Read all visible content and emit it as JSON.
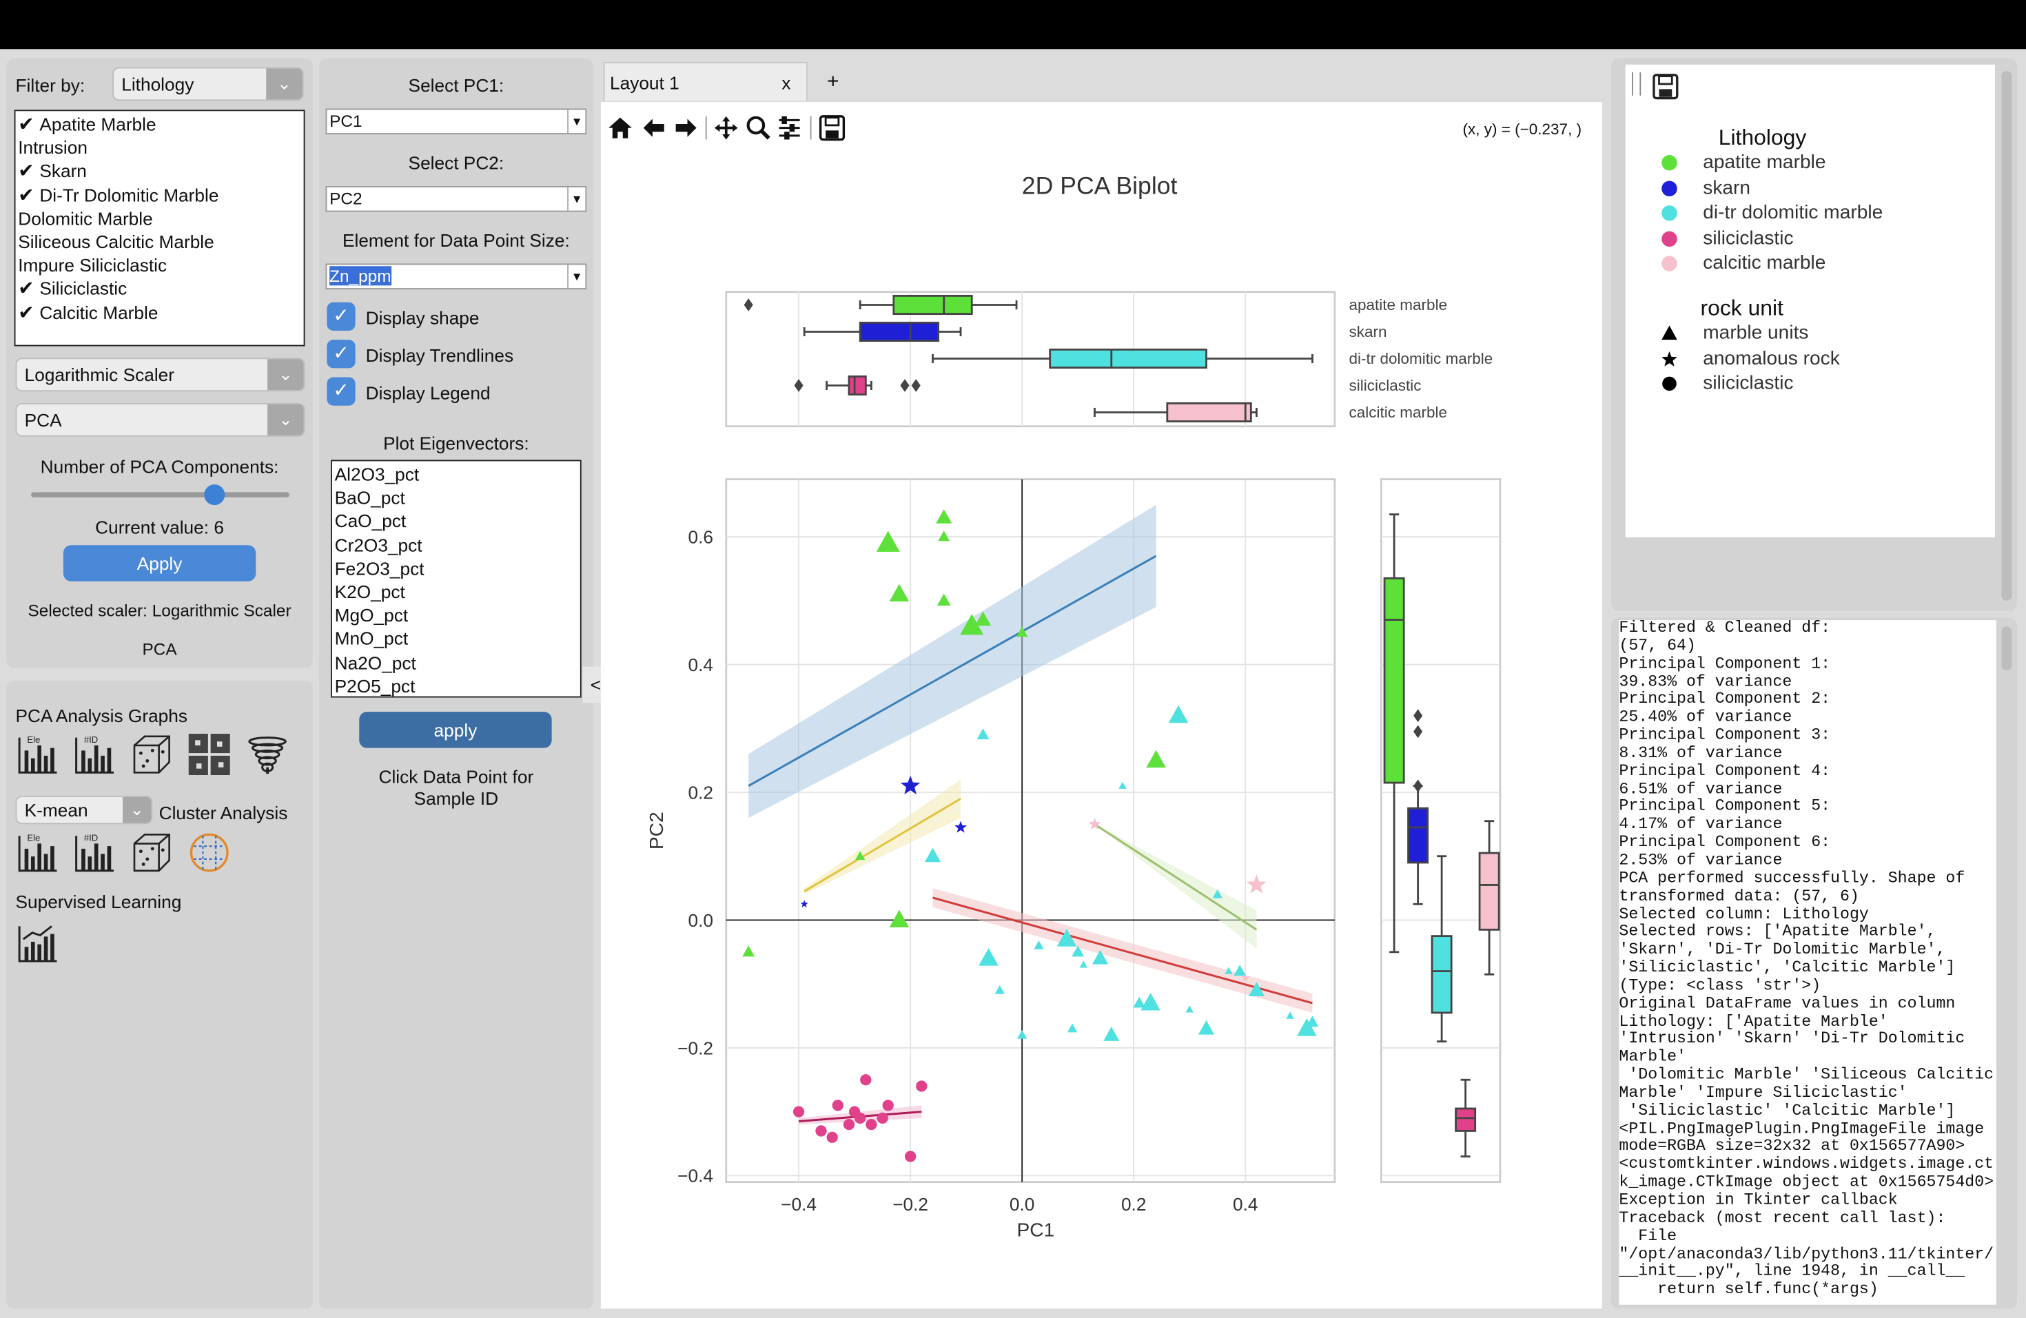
{
  "left_panel": {
    "filter_label": "Filter by:",
    "filter_value": "Lithology",
    "filter_items": [
      {
        "label": "Apatite Marble",
        "checked": true
      },
      {
        "label": "Intrusion",
        "checked": false
      },
      {
        "label": "Skarn",
        "checked": true
      },
      {
        "label": "Di-Tr Dolomitic Marble",
        "checked": true
      },
      {
        "label": "Dolomitic Marble",
        "checked": false
      },
      {
        "label": "Siliceous Calcitic Marble",
        "checked": false
      },
      {
        "label": "Impure Siliciclastic",
        "checked": false
      },
      {
        "label": "Siliciclastic",
        "checked": true
      },
      {
        "label": "Calcitic Marble",
        "checked": true
      }
    ],
    "scaler_value": "Logarithmic Scaler",
    "method_value": "PCA",
    "components_label": "Number of PCA Components:",
    "slider_fraction": 0.71,
    "current_value_text": "Current value: 6",
    "apply_label": "Apply",
    "selected_scaler_text": "Selected scaler: Logarithmic Scaler",
    "method_text": "PCA",
    "pca_graphs_label": "PCA Analysis Graphs",
    "cluster_method": "K-mean",
    "cluster_label": "Cluster Analysis",
    "supervised_label": "Supervised Learning",
    "icon_text_ele": "Ele",
    "icon_text_id": "#ID"
  },
  "mid_panel": {
    "pc1_label": "Select PC1:",
    "pc1_value": "PC1",
    "pc2_label": "Select PC2:",
    "pc2_value": "PC2",
    "size_label": "Element for Data Point Size:",
    "size_value": "Zn_ppm",
    "checkboxes": [
      {
        "label": "Display shape",
        "checked": true
      },
      {
        "label": "Display Trendlines",
        "checked": true
      },
      {
        "label": "Display Legend",
        "checked": true
      }
    ],
    "eigen_label": "Plot Eigenvectors:",
    "eigen_items": [
      "Al2O3_pct",
      "BaO_pct",
      "CaO_pct",
      "Cr2O3_pct",
      "Fe2O3_pct",
      "K2O_pct",
      "MgO_pct",
      "MnO_pct",
      "Na2O_pct",
      "P2O5_pct"
    ],
    "apply_label": "apply",
    "click_hint_1": "Click Data Point for",
    "click_hint_2": "Sample ID",
    "collapse_glyph": "<"
  },
  "tabs": {
    "tab1": "Layout 1",
    "close": "x",
    "add": "+"
  },
  "toolbar": {
    "coord_readout": "(x, y) = (−0.237, )"
  },
  "legend_panel": {
    "lithology_title": "Lithology",
    "lithology_items": [
      {
        "label": "apatite marble",
        "color": "#5ee03a"
      },
      {
        "label": "skarn",
        "color": "#1f1fd6"
      },
      {
        "label": "di-tr dolomitic marble",
        "color": "#4fe0e0"
      },
      {
        "label": "siliciclastic",
        "color": "#e0418a"
      },
      {
        "label": "calcitic marble",
        "color": "#f6c0cc"
      }
    ],
    "rock_title": "rock unit",
    "rock_items": [
      {
        "label": "marble units",
        "marker": "triangle"
      },
      {
        "label": "anomalous rock",
        "marker": "star"
      },
      {
        "label": "siliciclastic",
        "marker": "circle"
      }
    ]
  },
  "console_lines": [
    "Filtered & Cleaned df:",
    "(57, 64)",
    "Principal Component 1:",
    "39.83% of variance",
    "Principal Component 2:",
    "25.40% of variance",
    "Principal Component 3:",
    "8.31% of variance",
    "Principal Component 4:",
    "6.51% of variance",
    "Principal Component 5:",
    "4.17% of variance",
    "Principal Component 6:",
    "2.53% of variance",
    "PCA performed successfully. Shape of",
    "transformed data: (57, 6)",
    "Selected column: Lithology",
    "Selected rows: ['Apatite Marble',",
    "'Skarn', 'Di-Tr Dolomitic Marble',",
    "'Siliciclastic', 'Calcitic Marble']",
    "(Type: <class 'str'>)",
    "Original DataFrame values in column",
    "Lithology: ['Apatite Marble'",
    "'Intrusion' 'Skarn' 'Di-Tr Dolomitic",
    "Marble'",
    " 'Dolomitic Marble' 'Siliceous Calcitic",
    "Marble' 'Impure Siliciclastic'",
    " 'Siliciclastic' 'Calcitic Marble']",
    "<PIL.PngImagePlugin.PngImageFile image",
    "mode=RGBA size=32x32 at 0x156577A90>",
    "<customtkinter.windows.widgets.image.ct",
    "k_image.CTkImage object at 0x1565754d0>",
    "Exception in Tkinter callback",
    "Traceback (most recent call last):",
    "  File",
    "\"/opt/anaconda3/lib/python3.11/tkinter/",
    "__init__.py\", line 1948, in __call__",
    "    return self.func(*args)"
  ],
  "chart_data": {
    "type": "scatter",
    "title": "2D PCA Biplot",
    "xlabel": "PC1",
    "ylabel": "PC2",
    "xlim": [
      -0.53,
      0.56
    ],
    "ylim": [
      -0.41,
      0.69
    ],
    "x_ticks": [
      -0.4,
      -0.2,
      0.0,
      0.2,
      0.4
    ],
    "y_ticks": [
      -0.4,
      -0.2,
      0.0,
      0.2,
      0.4,
      0.6
    ],
    "x_tick_labels": [
      "−0.4",
      "−0.2",
      "0.0",
      "0.2",
      "0.4"
    ],
    "y_tick_labels": [
      "−0.4",
      "−0.2",
      "0.0",
      "0.2",
      "0.4",
      "0.6"
    ],
    "grid": true,
    "series": [
      {
        "name": "apatite marble",
        "color": "#5ee03a",
        "marker": "triangle",
        "points": [
          [
            -0.24,
            0.59
          ],
          [
            -0.14,
            0.63
          ],
          [
            -0.14,
            0.6
          ],
          [
            -0.22,
            0.51
          ],
          [
            -0.14,
            0.5
          ],
          [
            -0.09,
            0.46
          ],
          [
            -0.07,
            0.47
          ],
          [
            0.0,
            0.45
          ],
          [
            0.24,
            0.25
          ],
          [
            -0.29,
            0.1
          ],
          [
            -0.22,
            0.0
          ],
          [
            -0.49,
            -0.05
          ]
        ]
      },
      {
        "name": "skarn",
        "color": "#1f1fd6",
        "marker": "star",
        "points": [
          [
            -0.2,
            0.21
          ],
          [
            -0.11,
            0.145
          ],
          [
            -0.39,
            0.025
          ]
        ]
      },
      {
        "name": "di-tr dolomitic marble",
        "color": "#4fe0e0",
        "marker": "triangle",
        "points": [
          [
            0.28,
            0.32
          ],
          [
            -0.07,
            0.29
          ],
          [
            0.18,
            0.21
          ],
          [
            -0.16,
            0.1
          ],
          [
            0.35,
            0.04
          ],
          [
            0.08,
            -0.03
          ],
          [
            0.1,
            -0.05
          ],
          [
            0.11,
            -0.07
          ],
          [
            0.14,
            -0.06
          ],
          [
            0.03,
            -0.04
          ],
          [
            -0.06,
            -0.06
          ],
          [
            0.39,
            -0.08
          ],
          [
            0.37,
            -0.08
          ],
          [
            0.42,
            -0.11
          ],
          [
            -0.04,
            -0.11
          ],
          [
            0.23,
            -0.13
          ],
          [
            0.21,
            -0.13
          ],
          [
            0.3,
            -0.14
          ],
          [
            0.33,
            -0.17
          ],
          [
            0.09,
            -0.17
          ],
          [
            0.51,
            -0.17
          ],
          [
            0.52,
            -0.16
          ],
          [
            0.48,
            -0.15
          ],
          [
            0.16,
            -0.18
          ],
          [
            0.0,
            -0.18
          ]
        ]
      },
      {
        "name": "siliciclastic",
        "color": "#e0418a",
        "marker": "circle",
        "points": [
          [
            -0.28,
            -0.25
          ],
          [
            -0.18,
            -0.26
          ],
          [
            -0.4,
            -0.3
          ],
          [
            -0.33,
            -0.29
          ],
          [
            -0.3,
            -0.3
          ],
          [
            -0.29,
            -0.31
          ],
          [
            -0.27,
            -0.32
          ],
          [
            -0.24,
            -0.29
          ],
          [
            -0.25,
            -0.31
          ],
          [
            -0.31,
            -0.32
          ],
          [
            -0.36,
            -0.33
          ],
          [
            -0.34,
            -0.34
          ],
          [
            -0.2,
            -0.37
          ]
        ]
      },
      {
        "name": "calcitic marble",
        "color": "#f6c0cc",
        "marker": "star",
        "points": [
          [
            0.42,
            0.055
          ],
          [
            0.13,
            0.15
          ],
          [
            0.4,
            -0.09
          ]
        ]
      }
    ],
    "trendlines": [
      {
        "series": "apatite marble",
        "color": "#3a7fb8",
        "band": "#a9c6e0",
        "x": [
          -0.49,
          0.24
        ],
        "y": [
          0.21,
          0.57
        ],
        "band_width": [
          0.1,
          0.16
        ]
      },
      {
        "series": "skarn",
        "color": "#e0c43c",
        "band": "#f2eab0",
        "x": [
          -0.39,
          -0.11
        ],
        "y": [
          0.045,
          0.19
        ],
        "band_width": [
          0.01,
          0.06
        ]
      },
      {
        "series": "di-tr dolomitic marble",
        "color": "#d23b3b",
        "band": "#f3c3c3",
        "x": [
          -0.16,
          0.52
        ],
        "y": [
          0.035,
          -0.13
        ],
        "band_width": [
          0.03,
          0.03
        ]
      },
      {
        "series": "siliciclastic",
        "color": "#b01a5a",
        "band": "#f2bcd2",
        "x": [
          -0.4,
          -0.18
        ],
        "y": [
          -0.315,
          -0.3
        ],
        "band_width": [
          0.01,
          0.02
        ]
      },
      {
        "series": "calcitic marble",
        "color": "#9cc06e",
        "band": "#dfeccc",
        "x": [
          0.13,
          0.42
        ],
        "y": [
          0.15,
          -0.015
        ],
        "band_width": [
          0.0,
          0.06
        ]
      }
    ],
    "top_boxplot": {
      "categories": [
        "apatite marble",
        "skarn",
        "di-tr dolomitic marble",
        "siliciclastic",
        "calcitic marble"
      ],
      "colors": [
        "#5ee03a",
        "#1f1fd6",
        "#4fe0e0",
        "#e0418a",
        "#f6c0cc"
      ],
      "whisker_low": [
        -0.29,
        -0.39,
        -0.16,
        -0.35,
        0.13
      ],
      "q1": [
        -0.23,
        -0.29,
        0.05,
        -0.31,
        0.26
      ],
      "median": [
        -0.14,
        -0.2,
        0.16,
        -0.3,
        0.4
      ],
      "q3": [
        -0.09,
        -0.15,
        0.33,
        -0.28,
        0.41
      ],
      "whisker_high": [
        -0.01,
        -0.11,
        0.52,
        -0.27,
        0.42
      ],
      "outliers": [
        [
          -0.49
        ],
        [],
        [],
        [
          -0.4,
          -0.21,
          -0.19
        ],
        []
      ]
    },
    "right_boxplot": {
      "categories": [
        "apatite marble",
        "skarn",
        "di-tr dolomitic marble",
        "siliciclastic",
        "calcitic marble"
      ],
      "colors": [
        "#5ee03a",
        "#1f1fd6",
        "#4fe0e0",
        "#e0418a",
        "#f6c0cc"
      ],
      "whisker_low": [
        -0.05,
        0.025,
        -0.19,
        -0.37,
        -0.085
      ],
      "q1": [
        0.215,
        0.09,
        -0.145,
        -0.33,
        -0.015
      ],
      "median": [
        0.47,
        0.145,
        -0.08,
        -0.31,
        0.055
      ],
      "q3": [
        0.535,
        0.175,
        -0.025,
        -0.295,
        0.105
      ],
      "whisker_high": [
        0.635,
        0.21,
        0.1,
        -0.25,
        0.155
      ],
      "outliers": [
        [],
        [
          0.32,
          0.295,
          0.21
        ],
        [],
        [],
        []
      ]
    }
  }
}
